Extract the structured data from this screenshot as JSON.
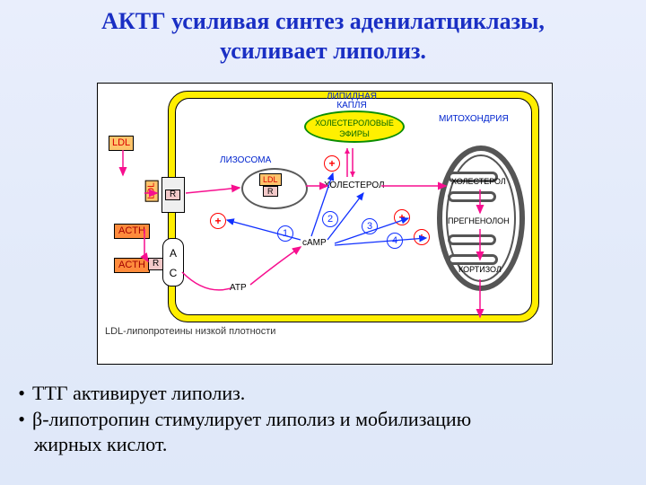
{
  "title": {
    "line1": "АКТГ усиливая синтез аденилатциклазы,",
    "line2": "усиливает липолиз.",
    "color": "#1a2fc4",
    "fontsize": 26
  },
  "diagram": {
    "background": "#ffffff",
    "cell_outer_fill": "#ffee00",
    "cell_inner_fill": "#ffffff",
    "labels": {
      "lysosome": "ЛИЗОСОМА",
      "lipid_drop": "ЛИПИДНАЯ\nКАПЛЯ",
      "chol_esters": "ХОЛЕСТЕРОЛОВЫЕ\nЭФИРЫ",
      "cholesterol": "ХОЛЕСТЕРОЛ",
      "mitochondria": "МИТОХОНДРИЯ",
      "chol2": "ХОЛЕСТЕРОЛ",
      "pregn": "ПРЕГНЕНОЛОН",
      "cortisol": "КОРТИЗОЛ",
      "camp": "сAMP",
      "atp": "ATP",
      "ldl_note": "LDL-липопротеины низкой плотности"
    },
    "molecules": {
      "ldl": "LDL",
      "acth": "ACTH",
      "r": "R",
      "ac_a": "A",
      "ac_c": "C"
    },
    "numbers": [
      "1",
      "2",
      "3",
      "4"
    ],
    "plus": "+",
    "colors": {
      "ldl_fill": "#fec46b",
      "ldl_text": "#d90000",
      "acth_fill": "#fe8b3c",
      "acth_text": "#a30000",
      "lipid_border": "#0b8e00",
      "lipid_fill": "#fff000",
      "lipid_text": "#006600",
      "num_border": "#1030ff",
      "plus_color": "#ff0000",
      "blue_label": "#0024cf",
      "arrow_pink": "#f70f8f",
      "arrow_blue": "#1030ff"
    }
  },
  "bullets": {
    "items": [
      "ТТГ активирует липолиз.",
      "β-липотропин стимулирует липолиз и мобилизацию",
      "жирных кислот."
    ],
    "fontsize": 22
  }
}
